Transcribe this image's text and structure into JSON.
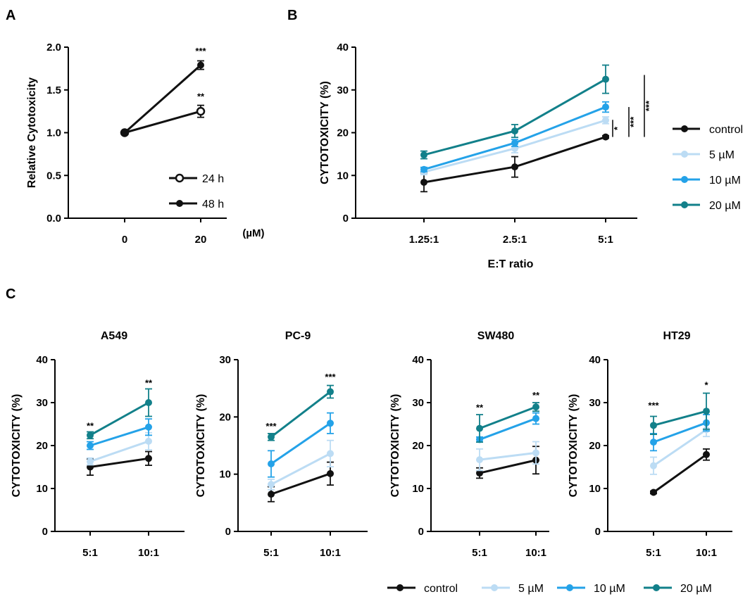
{
  "figure": {
    "panel_labels": [
      "A",
      "B",
      "C"
    ],
    "legend_A": [
      "24 h",
      "48 h"
    ],
    "legend_B": [
      "control",
      "5 µM",
      "10 µM",
      "20 µM"
    ],
    "legend_C": [
      "control",
      "5 µM",
      "10 µM",
      "20 µM"
    ]
  },
  "colors": {
    "control": "#111111",
    "5uM": "#bcdcf4",
    "10uM": "#24a2e8",
    "20uM": "#12808a"
  },
  "chart_data": [
    {
      "id": "A",
      "type": "line",
      "title": "",
      "xlabel": "",
      "ylabel": "Relative Cytotoxicity",
      "unit_label": "(µM)",
      "categories": [
        "0",
        "20"
      ],
      "ylim": [
        0,
        2.0
      ],
      "yticks": [
        "0.0",
        "0.5",
        "1.0",
        "1.5",
        "2.0"
      ],
      "series": [
        {
          "name": "24 h",
          "values": [
            1.0,
            1.25
          ],
          "errors": [
            0.02,
            0.07
          ],
          "open": true,
          "color": "#111111"
        },
        {
          "name": "48 h",
          "values": [
            1.0,
            1.79
          ],
          "errors": [
            0.02,
            0.05
          ],
          "open": false,
          "color": "#111111"
        }
      ],
      "annotations": [
        {
          "text": "***",
          "category": 1,
          "value": 1.95
        },
        {
          "text": "**",
          "category": 1,
          "value": 1.42
        }
      ]
    },
    {
      "id": "B",
      "type": "line",
      "title": "",
      "xlabel": "E:T ratio",
      "ylabel": "CYTOTOXICITY (%)",
      "categories": [
        "1.25:1",
        "2.5:1",
        "5:1"
      ],
      "ylim": [
        0,
        40
      ],
      "yticks": [
        "0",
        "10",
        "20",
        "30",
        "40"
      ],
      "series": [
        {
          "name": "control",
          "values": [
            8.4,
            12.0,
            19.0
          ],
          "errors": [
            2.2,
            2.4,
            0.3
          ],
          "color": "#111111"
        },
        {
          "name": "5 µM",
          "values": [
            10.8,
            16.3,
            22.9
          ],
          "errors": [
            0.6,
            1.0,
            0.8
          ],
          "color": "#bcdcf4"
        },
        {
          "name": "10 µM",
          "values": [
            11.4,
            17.6,
            26.0
          ],
          "errors": [
            0.5,
            0.8,
            1.2
          ],
          "color": "#24a2e8"
        },
        {
          "name": "20 µM",
          "values": [
            14.8,
            20.4,
            32.5
          ],
          "errors": [
            0.9,
            1.5,
            3.3
          ],
          "color": "#12808a"
        }
      ],
      "significance": [
        {
          "text": "*",
          "from": 23.0,
          "to": 19.0
        },
        {
          "text": "***",
          "from": 26.0,
          "to": 19.0
        },
        {
          "text": "***",
          "from": 33.5,
          "to": 19.0
        }
      ]
    },
    {
      "id": "C1",
      "type": "line",
      "title": "A549",
      "xlabel": "",
      "ylabel": "CYTOTOXICITY (%)",
      "categories": [
        "5:1",
        "10:1"
      ],
      "ylim": [
        0,
        40
      ],
      "yticks": [
        "0",
        "10",
        "20",
        "30",
        "40"
      ],
      "series": [
        {
          "name": "control",
          "values": [
            15.0,
            17.0
          ],
          "errors": [
            1.9,
            1.6
          ],
          "color": "#111111"
        },
        {
          "name": "5 µM",
          "values": [
            16.3,
            21.0
          ],
          "errors": [
            0.8,
            2.0
          ],
          "color": "#bcdcf4"
        },
        {
          "name": "10 µM",
          "values": [
            20.0,
            24.3
          ],
          "errors": [
            0.9,
            1.9
          ],
          "color": "#24a2e8"
        },
        {
          "name": "20 µM",
          "values": [
            22.4,
            30.0
          ],
          "errors": [
            0.8,
            3.2
          ],
          "color": "#12808a"
        }
      ],
      "annotations": [
        {
          "text": "**",
          "category": 0,
          "value": 24.5
        },
        {
          "text": "**",
          "category": 1,
          "value": 34.5
        }
      ]
    },
    {
      "id": "C2",
      "type": "line",
      "title": "PC-9",
      "xlabel": "",
      "ylabel": "CYTOTOXICITY (%)",
      "categories": [
        "5:1",
        "10:1"
      ],
      "ylim": [
        0,
        30
      ],
      "yticks": [
        "0",
        "10",
        "20",
        "30"
      ],
      "series": [
        {
          "name": "control",
          "values": [
            6.5,
            10.1
          ],
          "errors": [
            1.3,
            2.0
          ],
          "color": "#111111"
        },
        {
          "name": "5 µM",
          "values": [
            8.2,
            13.6
          ],
          "errors": [
            0.9,
            2.3
          ],
          "color": "#bcdcf4"
        },
        {
          "name": "10 µM",
          "values": [
            11.8,
            18.9
          ],
          "errors": [
            2.3,
            1.8
          ],
          "color": "#24a2e8"
        },
        {
          "name": "20 µM",
          "values": [
            16.5,
            24.4
          ],
          "errors": [
            0.6,
            1.1
          ],
          "color": "#12808a"
        }
      ],
      "annotations": [
        {
          "text": "***",
          "category": 0,
          "value": 18.3
        },
        {
          "text": "***",
          "category": 1,
          "value": 26.9
        }
      ]
    },
    {
      "id": "C3",
      "type": "line",
      "title": "SW480",
      "xlabel": "",
      "ylabel": "CYTOTOXICITY (%)",
      "categories": [
        "5:1",
        "10:1"
      ],
      "ylim": [
        0,
        40
      ],
      "yticks": [
        "0",
        "10",
        "20",
        "30",
        "40"
      ],
      "series": [
        {
          "name": "control",
          "values": [
            13.6,
            16.6
          ],
          "errors": [
            1.2,
            3.2
          ],
          "color": "#111111"
        },
        {
          "name": "5 µM",
          "values": [
            16.7,
            18.3
          ],
          "errors": [
            2.5,
            2.6
          ],
          "color": "#bcdcf4"
        },
        {
          "name": "10 µM",
          "values": [
            21.4,
            26.3
          ],
          "errors": [
            0.6,
            1.3
          ],
          "color": "#24a2e8"
        },
        {
          "name": "20 µM",
          "values": [
            24.0,
            29.0
          ],
          "errors": [
            3.2,
            1.0
          ],
          "color": "#12808a"
        }
      ],
      "annotations": [
        {
          "text": "**",
          "category": 0,
          "value": 28.8
        },
        {
          "text": "**",
          "category": 1,
          "value": 31.6
        }
      ]
    },
    {
      "id": "C4",
      "type": "line",
      "title": "HT29",
      "xlabel": "",
      "ylabel": "CYTOTOXICITY (%)",
      "categories": [
        "5:1",
        "10:1"
      ],
      "ylim": [
        0,
        40
      ],
      "yticks": [
        "0",
        "10",
        "20",
        "30",
        "40"
      ],
      "series": [
        {
          "name": "control",
          "values": [
            9.1,
            17.9
          ],
          "errors": [
            0.3,
            1.3
          ],
          "color": "#111111"
        },
        {
          "name": "5 µM",
          "values": [
            15.3,
            23.7
          ],
          "errors": [
            2.0,
            1.6
          ],
          "color": "#bcdcf4"
        },
        {
          "name": "10 µM",
          "values": [
            20.8,
            25.3
          ],
          "errors": [
            2.0,
            1.9
          ],
          "color": "#24a2e8"
        },
        {
          "name": "20 µM",
          "values": [
            24.7,
            28.0
          ],
          "errors": [
            2.1,
            4.2
          ],
          "color": "#12808a"
        }
      ],
      "annotations": [
        {
          "text": "***",
          "category": 0,
          "value": 29.3
        },
        {
          "text": "*",
          "category": 1,
          "value": 34.0
        }
      ]
    }
  ]
}
